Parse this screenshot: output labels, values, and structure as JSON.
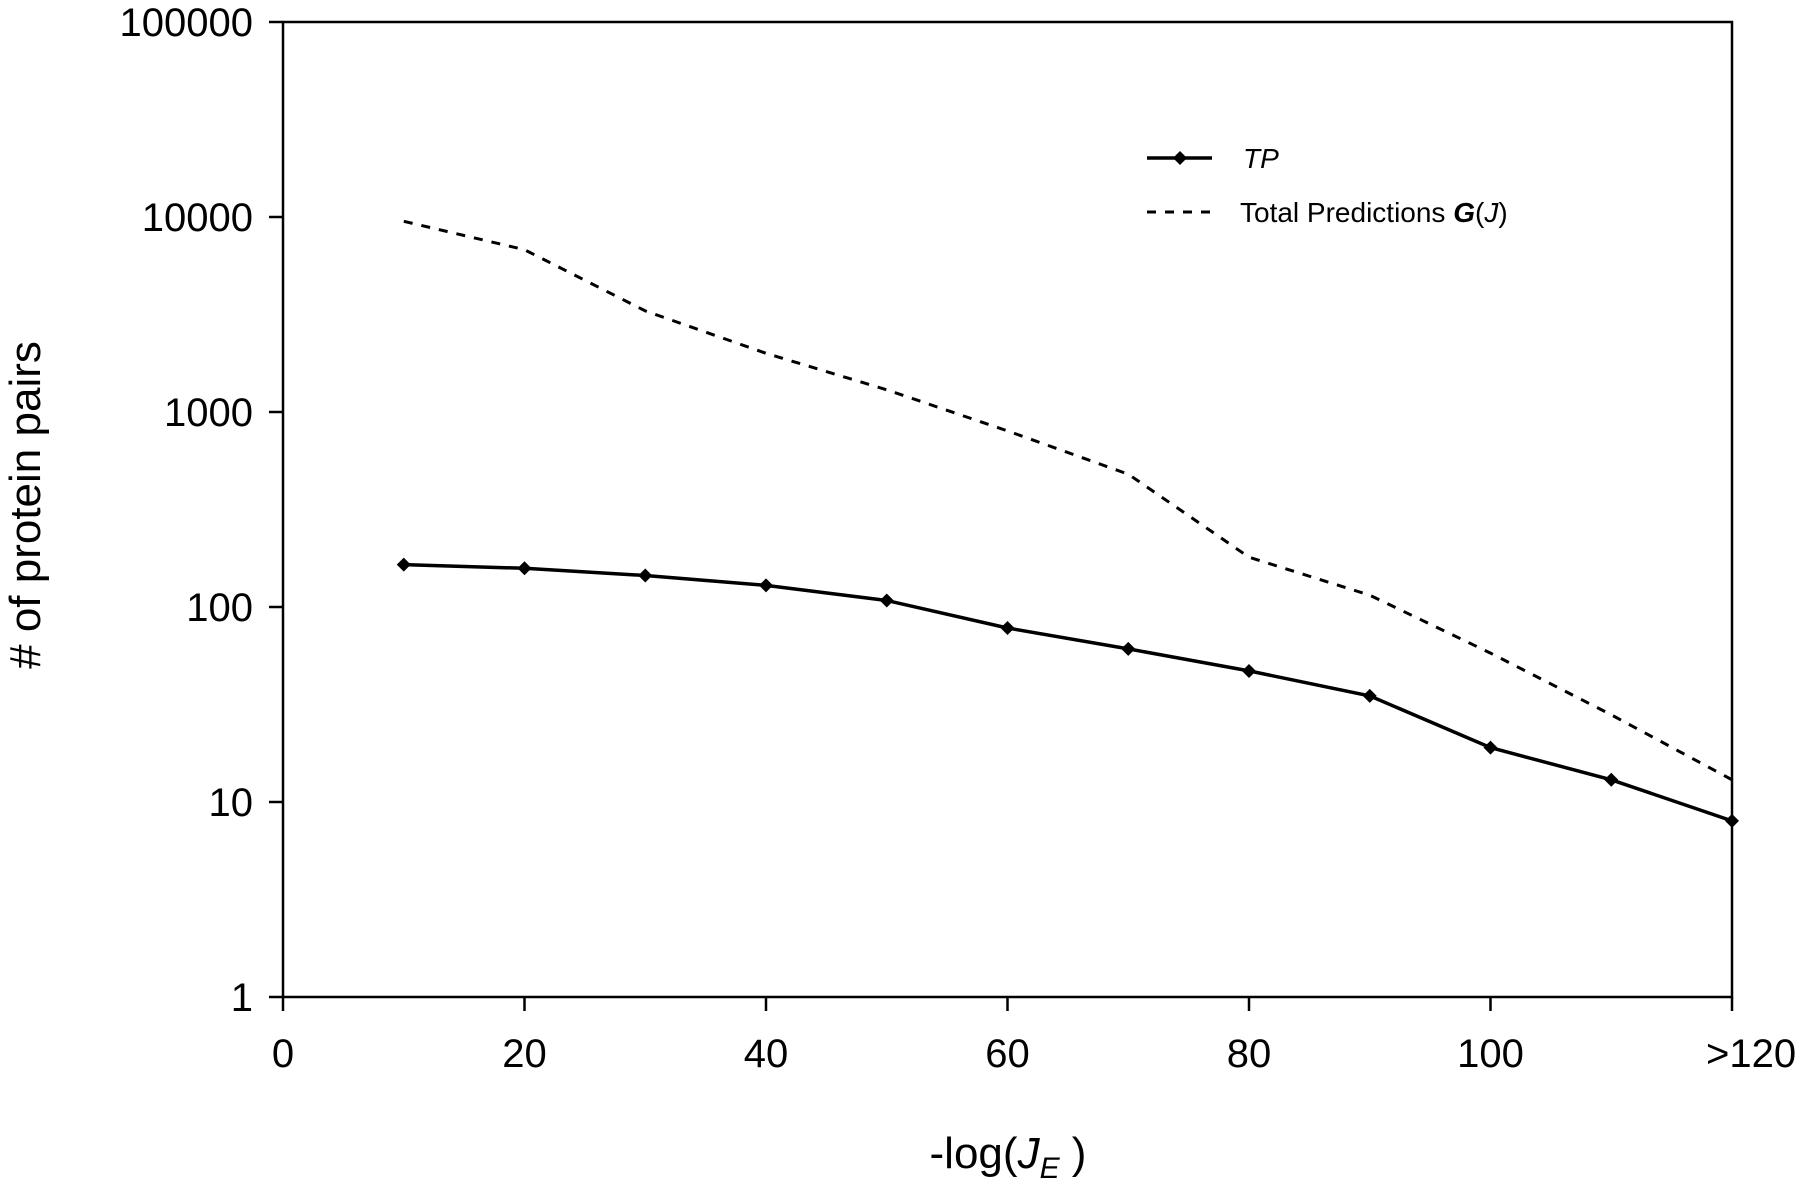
{
  "chart_data": {
    "type": "line",
    "title": "",
    "xlabel": {
      "prefix": "-log(",
      "var": "J",
      "sub": "E",
      "suffix": " )"
    },
    "ylabel": "# of protein pairs",
    "xlim": [
      0,
      120
    ],
    "ylim": [
      1,
      100000
    ],
    "yscale": "log",
    "x_ticks": [
      0,
      20,
      40,
      60,
      80,
      100,
      120
    ],
    "x_tick_labels": [
      "0",
      "20",
      "40",
      "60",
      "80",
      "100",
      ">120"
    ],
    "y_ticks": [
      1,
      10,
      100,
      1000,
      10000,
      100000
    ],
    "y_tick_labels": [
      "1",
      "10",
      "100",
      "1000",
      "10000",
      "100000"
    ],
    "grid": false,
    "legend_position": "top-right",
    "series": [
      {
        "name": "TP",
        "style": "solid",
        "marker": "diamond",
        "color": "#000000",
        "x": [
          10,
          20,
          30,
          40,
          50,
          60,
          70,
          80,
          90,
          100,
          110,
          120
        ],
        "y": [
          165,
          158,
          145,
          129,
          108,
          78,
          61,
          47,
          35,
          19,
          13,
          8
        ]
      },
      {
        "name": "Total Predictions G(J)",
        "legend": {
          "text": "Total Predictions ",
          "var": "G",
          "arg": "J"
        },
        "style": "dashed",
        "marker": "none",
        "color": "#000000",
        "x": [
          10,
          20,
          30,
          40,
          50,
          60,
          70,
          80,
          90,
          100,
          110,
          120
        ],
        "y": [
          9500,
          6800,
          3300,
          2000,
          1300,
          800,
          480,
          180,
          115,
          58,
          28,
          13
        ]
      }
    ]
  }
}
